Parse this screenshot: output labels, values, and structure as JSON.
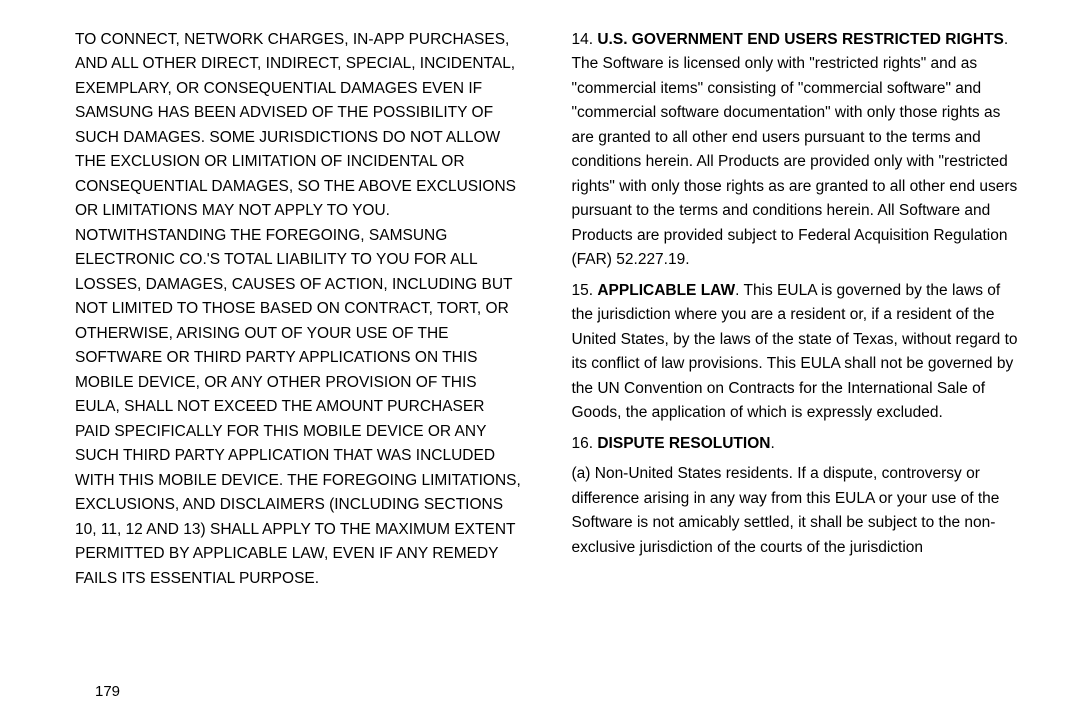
{
  "left_column": {
    "p1": "TO CONNECT, NETWORK CHARGES, IN-APP PURCHASES, AND ALL OTHER DIRECT, INDIRECT, SPECIAL, INCIDENTAL, EXEMPLARY, OR CONSEQUENTIAL DAMAGES EVEN IF SAMSUNG HAS BEEN ADVISED OF THE POSSIBILITY OF SUCH DAMAGES. SOME JURISDICTIONS DO NOT ALLOW THE EXCLUSION OR LIMITATION OF INCIDENTAL OR CONSEQUENTIAL DAMAGES, SO THE ABOVE EXCLUSIONS OR LIMITATIONS MAY NOT APPLY TO YOU. NOTWITHSTANDING THE FOREGOING, SAMSUNG ELECTRONIC CO.'S TOTAL LIABILITY TO YOU FOR ALL LOSSES, DAMAGES, CAUSES OF ACTION, INCLUDING BUT NOT LIMITED TO THOSE BASED ON CONTRACT, TORT, OR OTHERWISE, ARISING OUT OF YOUR USE OF THE SOFTWARE OR THIRD PARTY APPLICATIONS ON THIS MOBILE DEVICE, OR ANY OTHER PROVISION OF THIS EULA, SHALL NOT EXCEED THE AMOUNT PURCHASER PAID SPECIFICALLY FOR THIS MOBILE DEVICE OR ANY SUCH THIRD PARTY APPLICATION THAT WAS INCLUDED WITH THIS MOBILE DEVICE. THE FOREGOING LIMITATIONS, EXCLUSIONS, AND DISCLAIMERS (INCLUDING SECTIONS 10, 11, 12 AND 13) SHALL APPLY TO THE MAXIMUM EXTENT PERMITTED BY APPLICABLE LAW, EVEN IF ANY REMEDY FAILS ITS ESSENTIAL PURPOSE."
  },
  "right_column": {
    "s14_num": "14. ",
    "s14_title": "U.S. GOVERNMENT END USERS RESTRICTED RIGHTS",
    "s14_body": ". The Software is licensed only with \"restricted rights\" and as \"commercial items\" consisting of \"commercial software\" and \"commercial software documentation\" with only those rights as are granted to all other end users pursuant to the terms and conditions herein.  All Products are provided only with \"restricted rights\" with only those rights as are granted to all other end users pursuant to the terms and conditions herein.  All Software and Products are provided subject to Federal Acquisition Regulation (FAR) 52.227.19.",
    "s15_num": "15. ",
    "s15_title": "APPLICABLE LAW",
    "s15_body": ". This EULA is governed by the laws of the jurisdiction where you are a resident or, if a resident of the United States, by the laws of the state of Texas, without regard to its conflict of law provisions. This EULA shall not be governed by the UN Convention on Contracts for the International Sale of Goods, the application of which is expressly excluded.",
    "s16_num": "16.  ",
    "s16_title": "DISPUTE RESOLUTION",
    "s16_body": ".",
    "s16a": "(a) Non-United States residents. If a dispute, controversy or difference arising in any way from this EULA or your use of the Software is not amicably settled, it shall be subject to the non-exclusive jurisdiction of the courts of the jurisdiction"
  },
  "page_number": "179"
}
